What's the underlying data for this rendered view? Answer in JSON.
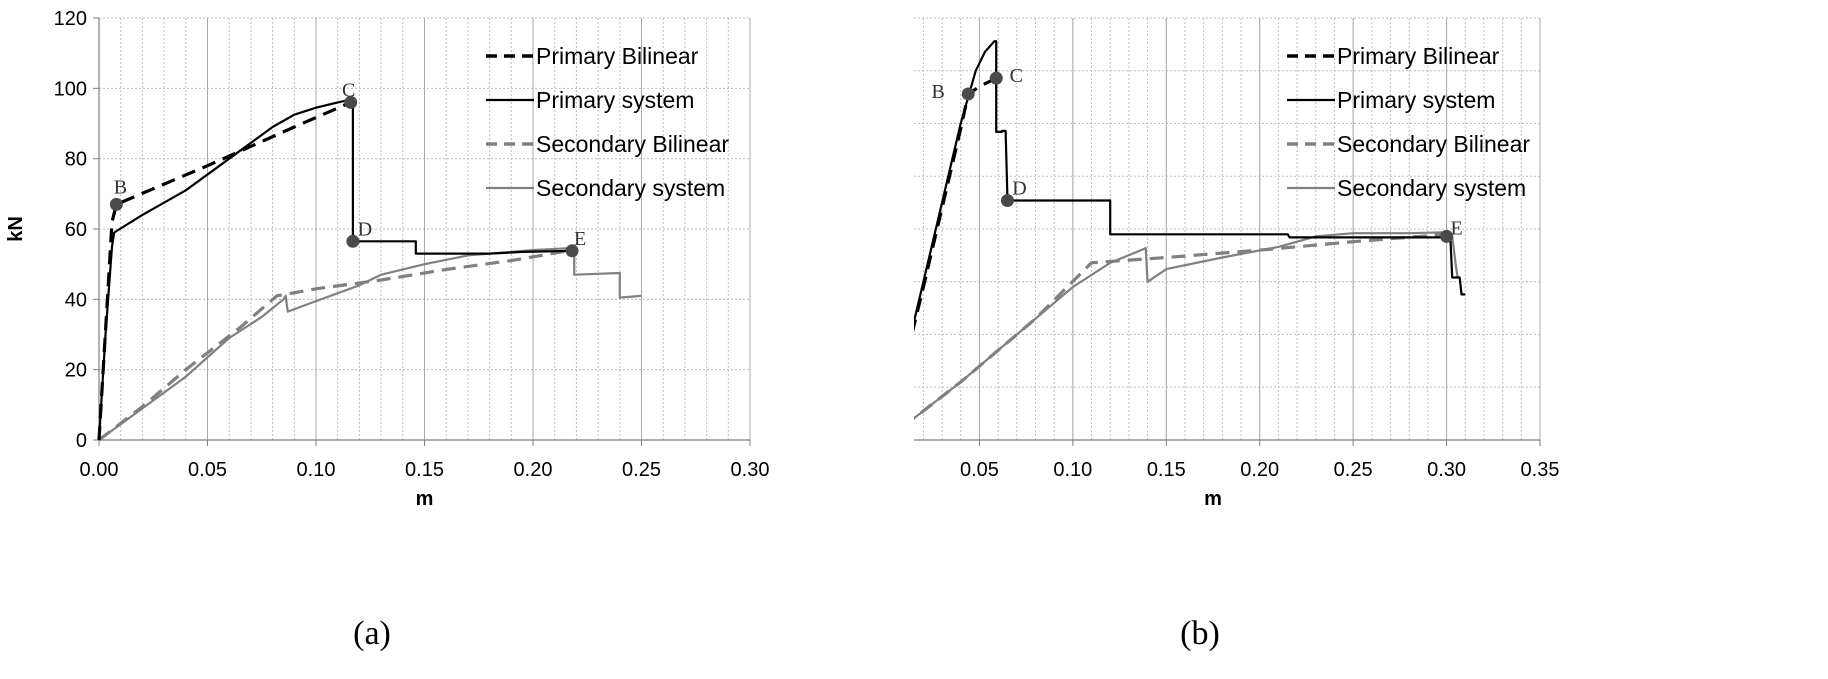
{
  "chart_data": [
    {
      "type": "line",
      "caption": "(a)",
      "xlabel": "m",
      "ylabel": "kN",
      "xlim": [
        0,
        0.3
      ],
      "ylim": [
        0,
        120
      ],
      "xticks": [
        "0.00",
        "0.05",
        "0.10",
        "0.15",
        "0.20",
        "0.25",
        "0.30"
      ],
      "yticks": [
        "0",
        "20",
        "40",
        "60",
        "80",
        "100",
        "120"
      ],
      "grid": true,
      "minor_grid_x": 0.01,
      "legend_position": "top-right",
      "series": [
        {
          "name": "Primary Bilinear",
          "style": "dashed",
          "color": "#000000",
          "points": [
            [
              0.0,
              0.0
            ],
            [
              0.006,
              62.0
            ],
            [
              0.008,
              67.0
            ],
            [
              0.05,
              78.0
            ],
            [
              0.09,
              89.0
            ],
            [
              0.116,
              96.0
            ]
          ]
        },
        {
          "name": "Primary system",
          "style": "solid",
          "color": "#000000",
          "points": [
            [
              0.0,
              0.0
            ],
            [
              0.003,
              30.0
            ],
            [
              0.006,
              55.0
            ],
            [
              0.007,
              59.0
            ],
            [
              0.02,
              64.0
            ],
            [
              0.04,
              71.0
            ],
            [
              0.06,
              80.0
            ],
            [
              0.08,
              89.0
            ],
            [
              0.09,
              92.5
            ],
            [
              0.1,
              94.5
            ],
            [
              0.11,
              96.0
            ],
            [
              0.114,
              96.5
            ],
            [
              0.116,
              96.0
            ],
            [
              0.117,
              95.5
            ],
            [
              0.117,
              56.5
            ],
            [
              0.146,
              56.5
            ],
            [
              0.146,
              53.0
            ],
            [
              0.18,
              53.0
            ],
            [
              0.195,
              53.5
            ],
            [
              0.218,
              53.8
            ]
          ]
        },
        {
          "name": "Secondary Bilinear",
          "style": "dashed",
          "color": "#808080",
          "points": [
            [
              0.0,
              0.0
            ],
            [
              0.02,
              9.5
            ],
            [
              0.04,
              20.0
            ],
            [
              0.065,
              32.0
            ],
            [
              0.082,
              41.0
            ],
            [
              0.1,
              43.0
            ],
            [
              0.13,
              45.5
            ],
            [
              0.16,
              48.5
            ],
            [
              0.19,
              51.0
            ],
            [
              0.218,
              54.0
            ]
          ]
        },
        {
          "name": "Secondary system",
          "style": "solid",
          "color": "#808080",
          "points": [
            [
              0.0,
              0.0
            ],
            [
              0.02,
              9.0
            ],
            [
              0.04,
              18.0
            ],
            [
              0.06,
              29.0
            ],
            [
              0.075,
              35.0
            ],
            [
              0.085,
              40.0
            ],
            [
              0.086,
              41.0
            ],
            [
              0.087,
              36.5
            ],
            [
              0.1,
              39.5
            ],
            [
              0.12,
              44.0
            ],
            [
              0.13,
              47.0
            ],
            [
              0.15,
              50.0
            ],
            [
              0.17,
              52.5
            ],
            [
              0.19,
              53.5
            ],
            [
              0.2,
              54.0
            ],
            [
              0.215,
              54.5
            ],
            [
              0.219,
              54.2
            ],
            [
              0.219,
              47.0
            ],
            [
              0.24,
              47.5
            ],
            [
              0.24,
              40.5
            ],
            [
              0.25,
              41.0
            ]
          ]
        }
      ],
      "point_labels": [
        {
          "label": "B",
          "x": 0.008,
          "y": 67.0
        },
        {
          "label": "C",
          "x": 0.116,
          "y": 96.0
        },
        {
          "label": "D",
          "x": 0.117,
          "y": 56.5
        },
        {
          "label": "E",
          "x": 0.218,
          "y": 53.8
        }
      ]
    },
    {
      "type": "line",
      "caption": "(b)",
      "xlabel": "m",
      "ylabel": "kN",
      "xlim": [
        0,
        0.35
      ],
      "ylim": [
        0,
        40
      ],
      "xticks": [
        "0.00",
        "0.05",
        "0.10",
        "0.15",
        "0.20",
        "0.25",
        "0.30",
        "0.35"
      ],
      "yticks": [
        "0",
        "5",
        "10",
        "15",
        "20",
        "25",
        "30",
        "35",
        "40"
      ],
      "grid": true,
      "minor_grid_x": 0.01,
      "legend_position": "top-right",
      "series": [
        {
          "name": "Primary Bilinear",
          "style": "dashed",
          "color": "#000000",
          "points": [
            [
              0.0,
              0.0
            ],
            [
              0.02,
              14.5
            ],
            [
              0.04,
              29.5
            ],
            [
              0.044,
              32.8
            ],
            [
              0.05,
              33.5
            ],
            [
              0.059,
              34.3
            ]
          ]
        },
        {
          "name": "Primary system",
          "style": "solid",
          "color": "#000000",
          "points": [
            [
              0.0,
              0.0
            ],
            [
              0.02,
              15.0
            ],
            [
              0.04,
              30.0
            ],
            [
              0.048,
              35.0
            ],
            [
              0.053,
              36.8
            ],
            [
              0.058,
              37.8
            ],
            [
              0.059,
              37.8
            ],
            [
              0.059,
              29.2
            ],
            [
              0.062,
              29.2
            ],
            [
              0.062,
              29.3
            ],
            [
              0.064,
              29.3
            ],
            [
              0.065,
              22.7
            ],
            [
              0.12,
              22.7
            ],
            [
              0.12,
              19.5
            ],
            [
              0.215,
              19.5
            ],
            [
              0.216,
              19.2
            ],
            [
              0.298,
              19.2
            ],
            [
              0.302,
              19.3
            ],
            [
              0.303,
              15.4
            ],
            [
              0.307,
              15.4
            ],
            [
              0.308,
              13.8
            ],
            [
              0.31,
              13.8
            ]
          ]
        },
        {
          "name": "Secondary Bilinear",
          "style": "dashed",
          "color": "#808080",
          "points": [
            [
              0.0,
              0.0
            ],
            [
              0.04,
              5.5
            ],
            [
              0.08,
              11.5
            ],
            [
              0.11,
              16.8
            ],
            [
              0.15,
              17.3
            ],
            [
              0.2,
              18.0
            ],
            [
              0.25,
              18.8
            ],
            [
              0.3,
              19.5
            ]
          ]
        },
        {
          "name": "Secondary system",
          "style": "solid",
          "color": "#808080",
          "points": [
            [
              0.0,
              0.0
            ],
            [
              0.04,
              5.5
            ],
            [
              0.08,
              11.5
            ],
            [
              0.1,
              14.5
            ],
            [
              0.12,
              16.8
            ],
            [
              0.138,
              18.1
            ],
            [
              0.139,
              18.2
            ],
            [
              0.14,
              15.0
            ],
            [
              0.15,
              16.2
            ],
            [
              0.18,
              17.3
            ],
            [
              0.21,
              18.3
            ],
            [
              0.23,
              19.3
            ],
            [
              0.25,
              19.6
            ],
            [
              0.28,
              19.6
            ],
            [
              0.3,
              19.7
            ],
            [
              0.303,
              19.3
            ],
            [
              0.305,
              16.5
            ],
            [
              0.306,
              15.3
            ]
          ]
        }
      ],
      "point_labels": [
        {
          "label": "B",
          "x": 0.044,
          "y": 32.8
        },
        {
          "label": "C",
          "x": 0.059,
          "y": 34.3
        },
        {
          "label": "D",
          "x": 0.065,
          "y": 22.7
        },
        {
          "label": "E",
          "x": 0.3,
          "y": 19.3
        }
      ]
    }
  ]
}
